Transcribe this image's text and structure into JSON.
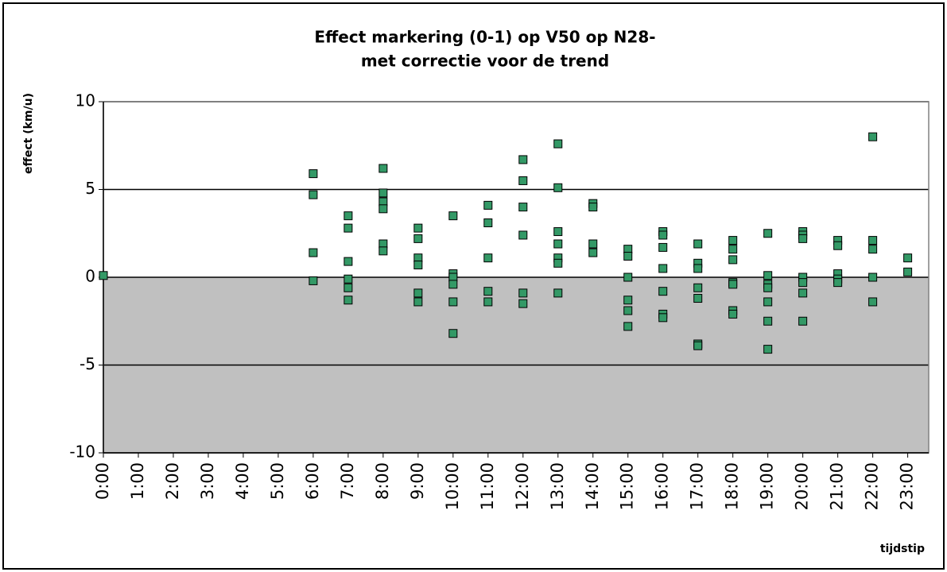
{
  "chart_data": {
    "type": "scatter",
    "title": [
      "Effect markering (0-1) op V50 op N28-",
      "met correctie voor de trend"
    ],
    "y_label": "effect (km/u)",
    "x_label": "tijdstip",
    "x": [
      0,
      6,
      6,
      6,
      6,
      7,
      7,
      7,
      7,
      7,
      7,
      8,
      8,
      8,
      8,
      8,
      8,
      9,
      9,
      9,
      9,
      9,
      9,
      10,
      10,
      10,
      10,
      10,
      10,
      11,
      11,
      11,
      11,
      11,
      12,
      12,
      12,
      12,
      12,
      12,
      13,
      13,
      13,
      13,
      13,
      13,
      13,
      14,
      14,
      14,
      14,
      15,
      15,
      15,
      15,
      15,
      15,
      16,
      16,
      16,
      16,
      16,
      16,
      16,
      17,
      17,
      17,
      17,
      17,
      17,
      17,
      18,
      18,
      18,
      18,
      18,
      18,
      18,
      19,
      19,
      19,
      19,
      19,
      19,
      19,
      20,
      20,
      20,
      20,
      20,
      20,
      20,
      21,
      21,
      21,
      21,
      21,
      22,
      22,
      22,
      22,
      22,
      23,
      23
    ],
    "values": [
      0.1,
      5.9,
      4.7,
      1.4,
      -0.2,
      3.5,
      2.8,
      0.9,
      -0.1,
      -0.6,
      -1.3,
      6.2,
      4.8,
      4.3,
      3.9,
      1.9,
      1.5,
      2.8,
      2.2,
      1.1,
      0.7,
      -0.9,
      -1.4,
      3.5,
      0.2,
      0,
      -0.4,
      -1.4,
      -3.2,
      4.1,
      3.1,
      1.1,
      -0.8,
      -1.4,
      6.7,
      5.5,
      4.0,
      2.4,
      -0.9,
      -1.5,
      7.6,
      5.1,
      2.6,
      1.9,
      1.1,
      0.8,
      -0.9,
      4.2,
      4.0,
      1.9,
      1.4,
      1.6,
      1.2,
      0.0,
      -1.3,
      -1.9,
      -2.8,
      2.6,
      2.4,
      1.7,
      0.5,
      -0.8,
      -2.1,
      -2.3,
      1.9,
      0.8,
      0.5,
      -0.6,
      -1.2,
      -3.8,
      -3.9,
      2.1,
      1.6,
      1.0,
      -0.3,
      -0.4,
      -1.9,
      -2.1,
      2.5,
      0.1,
      -0.4,
      -0.6,
      -1.4,
      -2.5,
      -4.1,
      2.6,
      2.4,
      2.2,
      0.0,
      -0.3,
      -0.9,
      -2.5,
      2.1,
      1.8,
      0.2,
      -0.1,
      -0.3,
      8.0,
      2.1,
      1.6,
      0.0,
      -1.4,
      1.1,
      0.3
    ],
    "color": "#339966",
    "negative_fill": "#c0c0c0",
    "grid": true,
    "xlim": [
      0,
      23.6
    ],
    "xticks": [
      {
        "value": 0,
        "label": "0:00"
      },
      {
        "value": 1,
        "label": "1:00"
      },
      {
        "value": 2,
        "label": "2:00"
      },
      {
        "value": 3,
        "label": "3:00"
      },
      {
        "value": 4,
        "label": "4:00"
      },
      {
        "value": 5,
        "label": "5:00"
      },
      {
        "value": 6,
        "label": "6:00"
      },
      {
        "value": 7,
        "label": "7:00"
      },
      {
        "value": 8,
        "label": "8:00"
      },
      {
        "value": 9,
        "label": "9:00"
      },
      {
        "value": 10,
        "label": "10:00"
      },
      {
        "value": 11,
        "label": "11:00"
      },
      {
        "value": 12,
        "label": "12:00"
      },
      {
        "value": 13,
        "label": "13:00"
      },
      {
        "value": 14,
        "label": "14:00"
      },
      {
        "value": 15,
        "label": "15:00"
      },
      {
        "value": 16,
        "label": "16:00"
      },
      {
        "value": 17,
        "label": "17:00"
      },
      {
        "value": 18,
        "label": "18:00"
      },
      {
        "value": 19,
        "label": "19:00"
      },
      {
        "value": 20,
        "label": "20:00"
      },
      {
        "value": 21,
        "label": "21:00"
      },
      {
        "value": 22,
        "label": "22:00"
      },
      {
        "value": 23,
        "label": "23:00"
      }
    ],
    "ylim": [
      -10,
      10
    ],
    "yticks": [
      10,
      5,
      0,
      -5,
      -10
    ]
  }
}
